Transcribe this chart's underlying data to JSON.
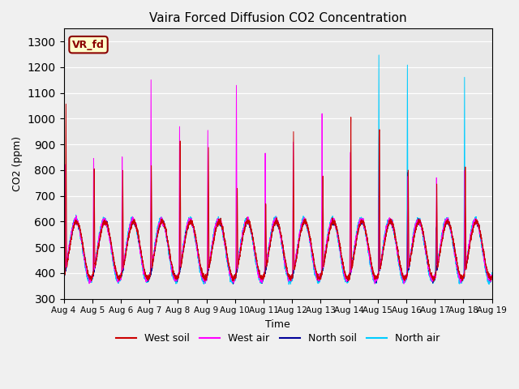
{
  "title": "Vaira Forced Diffusion CO2 Concentration",
  "xlabel": "Time",
  "ylabel": "CO2 (ppm)",
  "ylim": [
    300,
    1350
  ],
  "yticks": [
    300,
    400,
    500,
    600,
    700,
    800,
    900,
    1000,
    1100,
    1200,
    1300
  ],
  "xtick_labels": [
    "Aug 4",
    "Aug 5",
    "Aug 6",
    "Aug 7",
    "Aug 8",
    "Aug 9",
    "Aug 10",
    "Aug 11",
    "Aug 12",
    "Aug 13",
    "Aug 14",
    "Aug 15",
    "Aug 16",
    "Aug 17",
    "Aug 18",
    "Aug 19"
  ],
  "colors": {
    "west_soil": "#cc0000",
    "west_air": "#ff00ff",
    "north_soil": "#000099",
    "north_air": "#00ccff"
  },
  "legend_labels": [
    "West soil",
    "West air",
    "North soil",
    "North air"
  ],
  "annotation_text": "VR_fd",
  "annotation_color": "#8B0000",
  "annotation_bg": "#ffffcc",
  "bg_color": "#e8e8e8",
  "fig_bg": "#f0f0f0",
  "figsize": [
    6.4,
    4.8
  ],
  "dpi": 100
}
